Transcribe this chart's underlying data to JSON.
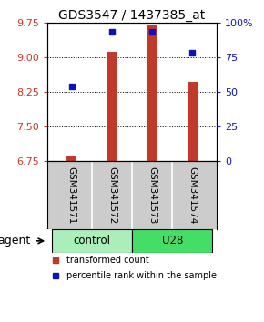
{
  "title": "GDS3547 / 1437385_at",
  "samples": [
    "GSM341571",
    "GSM341572",
    "GSM341573",
    "GSM341574"
  ],
  "bar_values": [
    6.85,
    9.12,
    9.68,
    8.47
  ],
  "percentile_values": [
    54,
    93,
    93,
    78
  ],
  "ylim_left": [
    6.75,
    9.75
  ],
  "ylim_right": [
    0,
    100
  ],
  "yticks_left": [
    6.75,
    7.5,
    8.25,
    9.0,
    9.75
  ],
  "yticks_right": [
    0,
    25,
    50,
    75,
    100
  ],
  "bar_color": "#c0392b",
  "dot_color": "#1111bb",
  "bar_bottom": 6.75,
  "groups": [
    {
      "label": "control",
      "indices": [
        0,
        1
      ],
      "color": "#aaeebb"
    },
    {
      "label": "U28",
      "indices": [
        2,
        3
      ],
      "color": "#44dd66"
    }
  ],
  "legend_bar_label": "transformed count",
  "legend_dot_label": "percentile rank within the sample",
  "agent_label": "agent",
  "background_color": "#ffffff",
  "plot_bg_color": "#ffffff",
  "title_fontsize": 10,
  "tick_fontsize": 8,
  "sample_label_fontsize": 7.5,
  "group_label_fontsize": 8.5,
  "legend_fontsize": 7,
  "agent_fontsize": 9
}
